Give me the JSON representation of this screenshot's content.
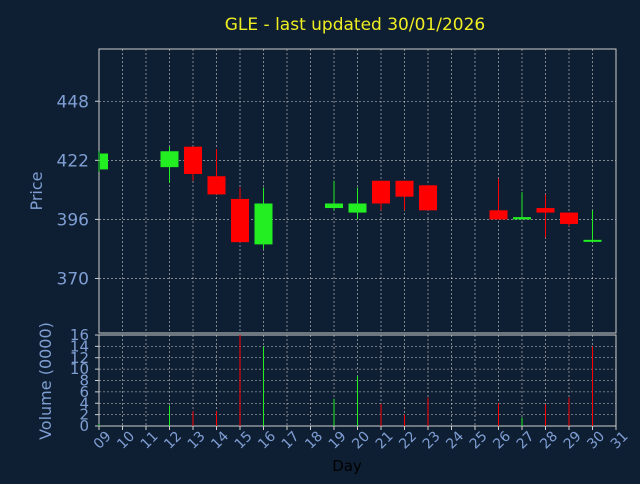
{
  "chart_data": [
    {
      "type": "candlestick",
      "title": "GLE - last updated 30/01/2026",
      "ylabel": "Price",
      "ylim": [
        346,
        471
      ],
      "yticks": [
        370,
        396,
        422,
        448
      ],
      "x_ticks": [
        "09",
        "10",
        "11",
        "12",
        "13",
        "14",
        "15",
        "16",
        "17",
        "18",
        "19",
        "20",
        "21",
        "22",
        "23",
        "24",
        "25",
        "26",
        "27",
        "28",
        "29",
        "30",
        "31"
      ],
      "grid": true,
      "colors": {
        "up": "#22ee22",
        "down": "#ff0000",
        "wick_up": "#22ee22",
        "wick_down": "#ff0000"
      },
      "candles": [
        {
          "day": 9,
          "open": 418,
          "high": 426,
          "low": 417,
          "close": 425
        },
        {
          "day": 12,
          "open": 419,
          "high": 428,
          "low": 412,
          "close": 426
        },
        {
          "day": 13,
          "open": 428,
          "high": 428,
          "low": 413,
          "close": 416
        },
        {
          "day": 14,
          "open": 415,
          "high": 427,
          "low": 408,
          "close": 407
        },
        {
          "day": 15,
          "open": 405,
          "high": 410,
          "low": 386,
          "close": 386
        },
        {
          "day": 16,
          "open": 385,
          "high": 410,
          "low": 383,
          "close": 403
        },
        {
          "day": 19,
          "open": 401,
          "high": 413,
          "low": 400,
          "close": 403
        },
        {
          "day": 20,
          "open": 399,
          "high": 410,
          "low": 396,
          "close": 403
        },
        {
          "day": 21,
          "open": 413,
          "high": 413,
          "low": 400,
          "close": 403
        },
        {
          "day": 22,
          "open": 413,
          "high": 413,
          "low": 400,
          "close": 406
        },
        {
          "day": 23,
          "open": 411,
          "high": 411,
          "low": 400,
          "close": 400
        },
        {
          "day": 26,
          "open": 400,
          "high": 414,
          "low": 396,
          "close": 396
        },
        {
          "day": 27,
          "open": 396,
          "high": 408,
          "low": 396,
          "close": 397
        },
        {
          "day": 28,
          "open": 401,
          "high": 407,
          "low": 388,
          "close": 399
        },
        {
          "day": 29,
          "open": 399,
          "high": 399,
          "low": 393,
          "close": 394
        },
        {
          "day": 30,
          "open": 387,
          "high": 400,
          "low": 387,
          "close": 387
        }
      ]
    },
    {
      "type": "bar",
      "ylabel": "Volume (0000)",
      "xlabel": "Day",
      "ylim": [
        0,
        16
      ],
      "yticks": [
        0,
        2,
        4,
        6,
        8,
        10,
        12,
        14,
        16
      ],
      "x": [
        9,
        12,
        13,
        14,
        15,
        16,
        19,
        20,
        21,
        22,
        23,
        26,
        27,
        28,
        29,
        30
      ],
      "values": [
        0.3,
        3.6,
        2.6,
        2.6,
        16,
        14,
        4.8,
        8.8,
        3.9,
        2.0,
        5.0,
        4.0,
        1.5,
        3.8,
        5.0,
        14
      ],
      "bar_colors": [
        "#22ee22",
        "#22ee22",
        "#ff0000",
        "#ff0000",
        "#ff0000",
        "#22ee22",
        "#22ee22",
        "#22ee22",
        "#ff0000",
        "#ff0000",
        "#ff0000",
        "#ff0000",
        "#22ee22",
        "#ff0000",
        "#ff0000",
        "#ff0000"
      ]
    }
  ],
  "colors": {
    "background": "#0f1f33",
    "axis_text": "#7f9ed3",
    "title": "#eeee22",
    "grid": "#cccccc",
    "axis": "#cccccc",
    "xlabel": "#000000"
  }
}
